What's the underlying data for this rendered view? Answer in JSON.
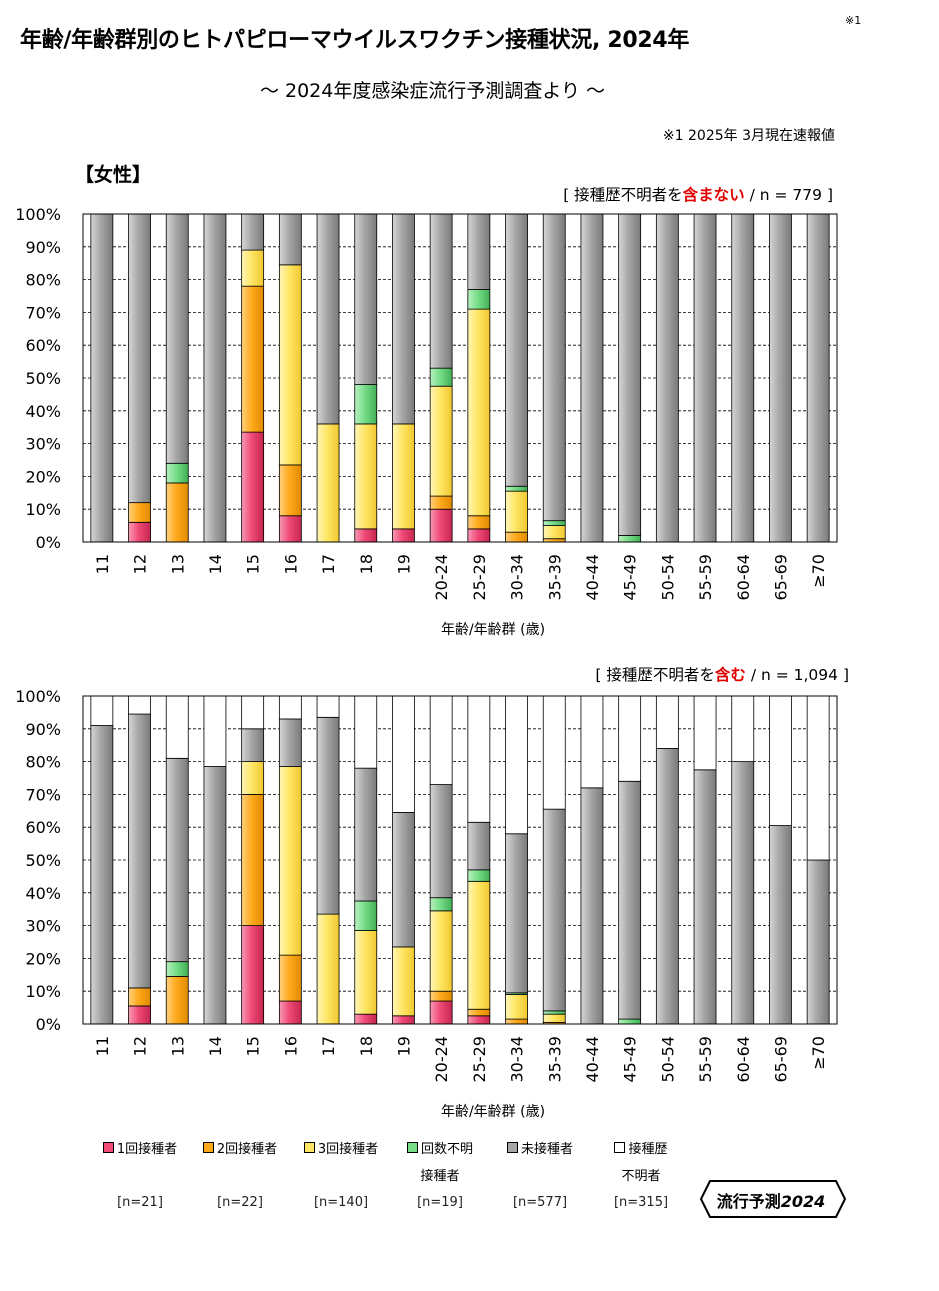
{
  "header": {
    "title": "年齢/年齢群別のヒトパピローマウイルスワクチン接種状況, 2024年",
    "title_note": "※1",
    "subtitle": "～ 2024年度感染症流行予測調査より ～",
    "footnote": "※1  2025年 3月現在速報値",
    "section_label": "【女性】"
  },
  "colors": {
    "one_dose": "#f04a78",
    "two_dose": "#ffaa1c",
    "three_dose": "#ffe666",
    "unknown_doses": "#77dd88",
    "unvaccinated": "#a6a6a6",
    "history_unknown": "#ffffff"
  },
  "legend": [
    {
      "label": "1回接種者",
      "sub": "",
      "n": "[n=21]"
    },
    {
      "label": "2回接種者",
      "sub": "",
      "n": "[n=22]"
    },
    {
      "label": "3回接種者",
      "sub": "",
      "n": "[n=140]"
    },
    {
      "label": "回数不明",
      "sub": "接種者",
      "n": "[n=19]"
    },
    {
      "label": "未接種者",
      "sub": "",
      "n": "[n=577]"
    },
    {
      "label": "接種歴",
      "sub": "不明者",
      "n": "[n=315]"
    }
  ],
  "chart_data": [
    {
      "type": "bar",
      "stacked": true,
      "condition": {
        "prefix": "[ 接種歴不明者を",
        "emph": "含まない",
        "suffix": " / n = 779 ]"
      },
      "xlabel": "年齢/年齢群 (歳)",
      "ylabel": "",
      "ylim": [
        0,
        100
      ],
      "yticks": [
        "0%",
        "10%",
        "20%",
        "30%",
        "40%",
        "50%",
        "60%",
        "70%",
        "80%",
        "90%",
        "100%"
      ],
      "categories": [
        "11",
        "12",
        "13",
        "14",
        "15",
        "16",
        "17",
        "18",
        "19",
        "20-24",
        "25-29",
        "30-34",
        "35-39",
        "40-44",
        "45-49",
        "50-54",
        "55-59",
        "60-64",
        "65-69",
        "≥70"
      ],
      "series": [
        {
          "name": "1回接種者",
          "values": [
            0,
            6,
            0,
            0,
            33.5,
            8,
            0,
            4,
            4,
            10,
            4,
            0,
            0,
            0,
            0,
            0,
            0,
            0,
            0,
            0
          ]
        },
        {
          "name": "2回接種者",
          "values": [
            0,
            6,
            18,
            0,
            44.5,
            15.5,
            0,
            0,
            0,
            4,
            4,
            3,
            1,
            0,
            0,
            0,
            0,
            0,
            0,
            0
          ]
        },
        {
          "name": "3回接種者",
          "values": [
            0,
            0,
            0,
            0,
            11,
            61,
            36,
            32,
            32,
            33.5,
            63,
            12.5,
            4,
            0,
            0,
            0,
            0,
            0,
            0,
            0
          ]
        },
        {
          "name": "回数不明接種者",
          "values": [
            0,
            0,
            6,
            0,
            0,
            0,
            0,
            12,
            0,
            5.5,
            6,
            1.5,
            1.5,
            0,
            2,
            0,
            0,
            0,
            0,
            0
          ]
        },
        {
          "name": "未接種者",
          "values": [
            100,
            88,
            76,
            100,
            11,
            15.5,
            64,
            52,
            64,
            47,
            23,
            83,
            93.5,
            100,
            98,
            100,
            100,
            100,
            100,
            100
          ]
        }
      ]
    },
    {
      "type": "bar",
      "stacked": true,
      "condition": {
        "prefix": "[ 接種歴不明者を",
        "emph": "含む",
        "suffix": " / n = 1,094 ]"
      },
      "xlabel": "年齢/年齢群 (歳)",
      "ylabel": "",
      "ylim": [
        0,
        100
      ],
      "yticks": [
        "0%",
        "10%",
        "20%",
        "30%",
        "40%",
        "50%",
        "60%",
        "70%",
        "80%",
        "90%",
        "100%"
      ],
      "categories": [
        "11",
        "12",
        "13",
        "14",
        "15",
        "16",
        "17",
        "18",
        "19",
        "20-24",
        "25-29",
        "30-34",
        "35-39",
        "40-44",
        "45-49",
        "50-54",
        "55-59",
        "60-64",
        "65-69",
        "≥70"
      ],
      "series": [
        {
          "name": "1回接種者",
          "values": [
            0,
            5.5,
            0,
            0,
            30,
            7,
            0,
            3,
            2.5,
            7,
            2.5,
            0,
            0,
            0,
            0,
            0,
            0,
            0,
            0,
            0
          ]
        },
        {
          "name": "2回接種者",
          "values": [
            0,
            5.5,
            14.5,
            0,
            40,
            14,
            0,
            0,
            0,
            3,
            2,
            1.5,
            0.5,
            0,
            0,
            0,
            0,
            0,
            0,
            0
          ]
        },
        {
          "name": "3回接種者",
          "values": [
            0,
            0,
            0,
            0,
            10,
            57.5,
            33.5,
            25.5,
            21,
            24.5,
            39,
            7.5,
            2.5,
            0,
            0,
            0,
            0,
            0,
            0,
            0
          ]
        },
        {
          "name": "回数不明接種者",
          "values": [
            0,
            0,
            4.5,
            0,
            0,
            0,
            0,
            9,
            0,
            4,
            3.5,
            0.5,
            1,
            0,
            1.5,
            0,
            0,
            0,
            0,
            0
          ]
        },
        {
          "name": "未接種者",
          "values": [
            91,
            83.5,
            62,
            78.5,
            10,
            14.5,
            60,
            40.5,
            41,
            34.5,
            14.5,
            48.5,
            61.5,
            72,
            72.5,
            84,
            77.5,
            80,
            60.5,
            50
          ]
        },
        {
          "name": "接種歴不明者",
          "values": [
            9,
            5.5,
            19,
            21.5,
            10,
            7,
            6.5,
            22,
            35.5,
            27,
            38.5,
            42,
            34.5,
            28,
            26,
            16,
            22.5,
            20,
            39.5,
            50
          ]
        }
      ]
    }
  ],
  "badge": {
    "text_plain": "流行予測",
    "text_italic": "2024"
  }
}
